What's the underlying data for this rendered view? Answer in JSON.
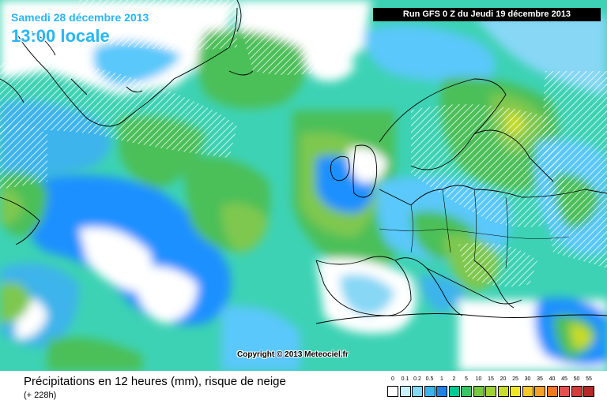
{
  "header": {
    "date": "Samedi 28 décembre 2013",
    "time": "13:00 locale",
    "run": "Run GFS 0 Z du Jeudi 19 décembre 2013"
  },
  "map": {
    "copyright": "Copyright © 2013 Meteociel.fr",
    "colors": {
      "ocean_base": "#3dd2b4",
      "light_blue": "#5ac8fa",
      "blue": "#1e90ff",
      "green": "#4bbf59",
      "lime": "#7ec850",
      "coast": "#000000",
      "hatch": "#ffffff"
    }
  },
  "footer": {
    "caption": "Précipitations en 12 heures (mm), risque de neige",
    "subcaption": "(+ 228h)"
  },
  "legend": {
    "items": [
      {
        "label": "0",
        "color": "#ffffff"
      },
      {
        "label": "0.1",
        "color": "#c8f0ff"
      },
      {
        "label": "0.2",
        "color": "#87d7f5"
      },
      {
        "label": "0.5",
        "color": "#3cb4eb"
      },
      {
        "label": "1",
        "color": "#1e82e6"
      },
      {
        "label": "2",
        "color": "#00c896"
      },
      {
        "label": "5",
        "color": "#32c864"
      },
      {
        "label": "10",
        "color": "#78c83c"
      },
      {
        "label": "15",
        "color": "#a0d232"
      },
      {
        "label": "20",
        "color": "#c8dc28"
      },
      {
        "label": "25",
        "color": "#f0e628"
      },
      {
        "label": "30",
        "color": "#f5c828"
      },
      {
        "label": "35",
        "color": "#f5a028"
      },
      {
        "label": "40",
        "color": "#f07828"
      },
      {
        "label": "45",
        "color": "#e65050"
      },
      {
        "label": "50",
        "color": "#d23c3c"
      },
      {
        "label": "55",
        "color": "#b42828"
      }
    ]
  }
}
